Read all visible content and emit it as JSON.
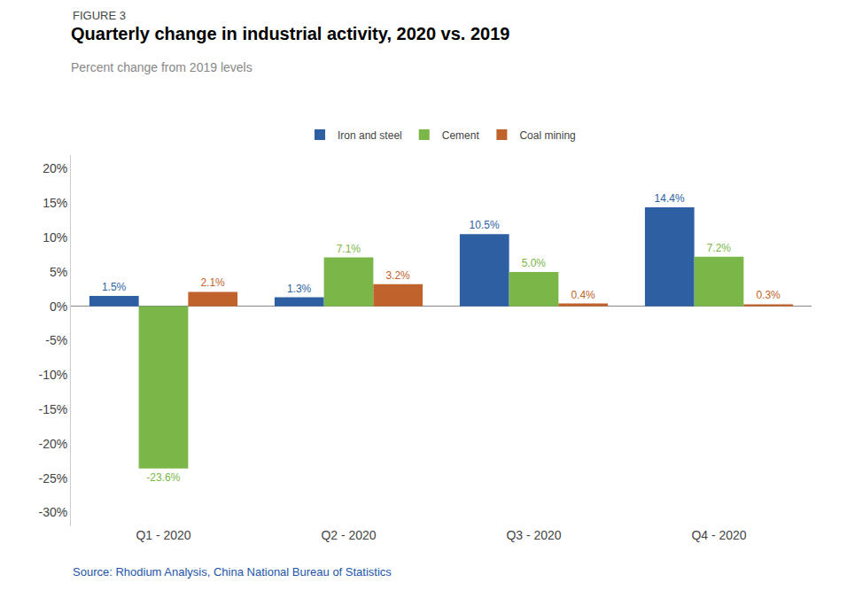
{
  "chart_data": {
    "type": "bar",
    "title": "Quarterly change in industrial activity, 2020 vs. 2019",
    "subtitle": "Percent change from 2019 levels",
    "annotations": [
      "FIGURE 3",
      "Source: Rhodium Analysis, China National Bureau of Statistics"
    ],
    "categories": [
      "Q1 - 2020",
      "Q2 - 2020",
      "Q3 - 2020",
      "Q4 - 2020"
    ],
    "series": [
      {
        "name": "Iron and steel",
        "color": "#2E5FA3",
        "values": [
          1.5,
          1.3,
          10.5,
          14.4
        ],
        "value_labels": [
          "1.5%",
          "1.3%",
          "10.5%",
          "14.4%"
        ]
      },
      {
        "name": "Cement",
        "color": "#7AB648",
        "values": [
          -23.6,
          7.1,
          5.0,
          7.2
        ],
        "value_labels": [
          "-23.6%",
          "7.1%",
          "5.0%",
          "7.2%"
        ]
      },
      {
        "name": "Coal mining",
        "color": "#C0622C",
        "values": [
          2.1,
          3.2,
          0.4,
          0.3
        ],
        "value_labels": [
          "2.1%",
          "3.2%",
          "0.4%",
          "0.3%"
        ]
      }
    ],
    "ylim": [
      -32,
      22
    ],
    "yticks": [
      {
        "value": -30,
        "label": "-30%"
      },
      {
        "value": -25,
        "label": "-25%"
      },
      {
        "value": -20,
        "label": "-20%"
      },
      {
        "value": -15,
        "label": "-15%"
      },
      {
        "value": -10,
        "label": "-10%"
      },
      {
        "value": -5,
        "label": "-5%"
      },
      {
        "value": 0,
        "label": "0%"
      },
      {
        "value": 5,
        "label": "5%"
      },
      {
        "value": 10,
        "label": "10%"
      },
      {
        "value": 15,
        "label": "15%"
      },
      {
        "value": 20,
        "label": "20%"
      }
    ],
    "data_labels": true,
    "grid": false,
    "legend": "top"
  }
}
